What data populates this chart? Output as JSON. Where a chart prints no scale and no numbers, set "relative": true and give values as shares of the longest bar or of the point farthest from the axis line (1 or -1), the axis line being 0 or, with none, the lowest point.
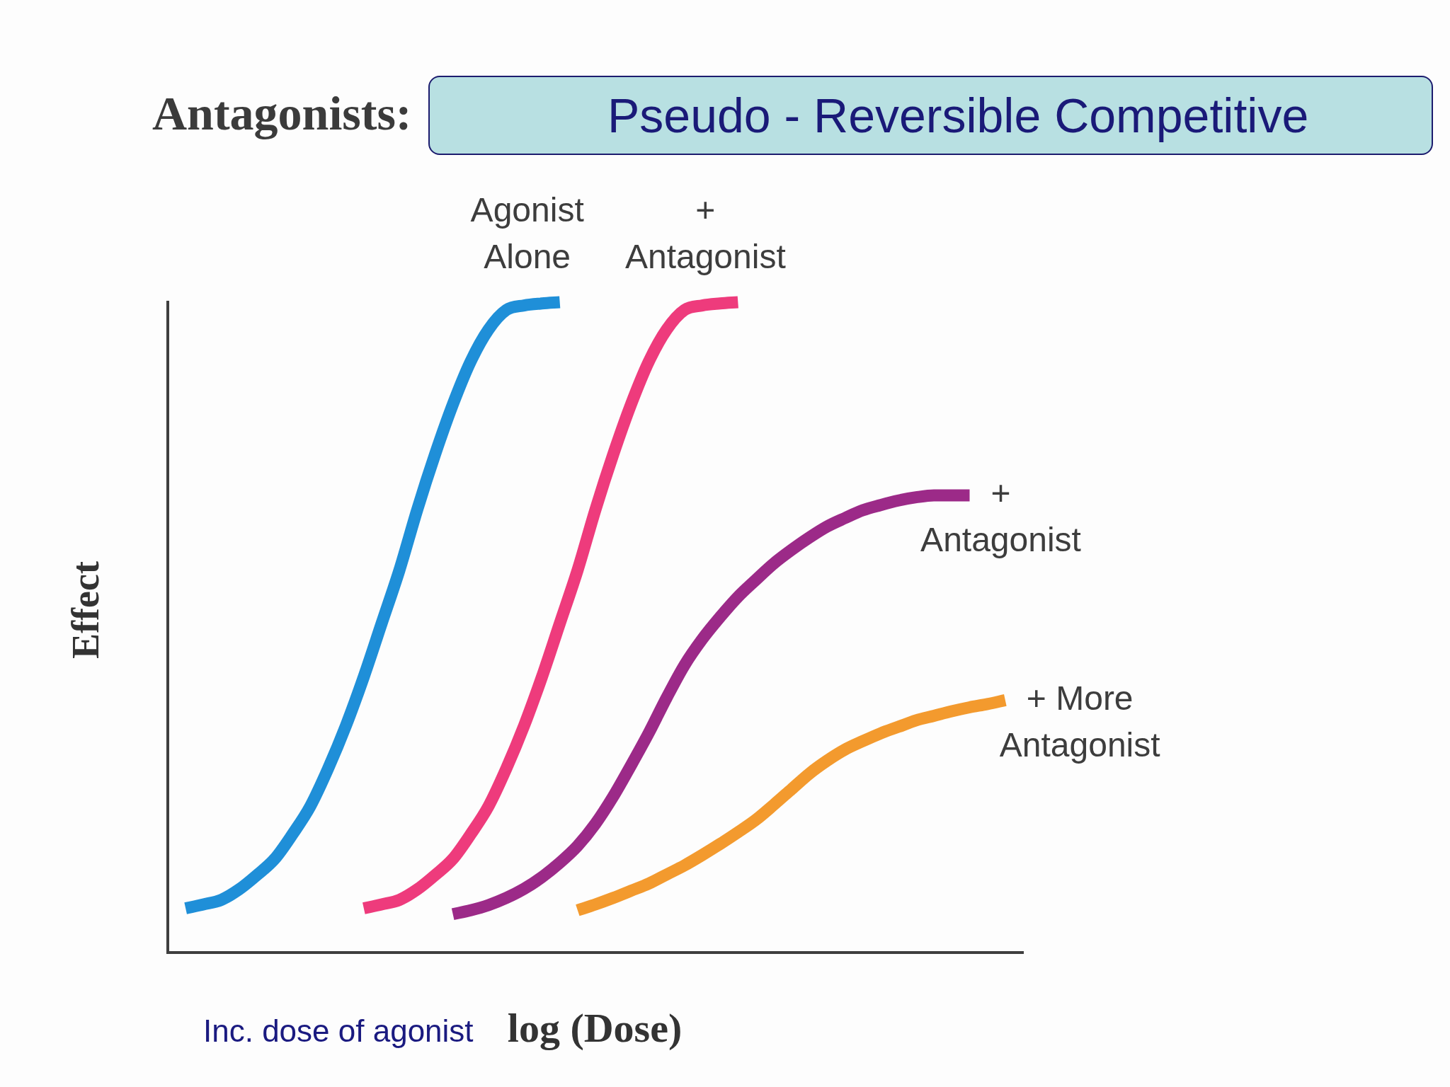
{
  "chart_data": {
    "type": "line",
    "title": "Antagonists:",
    "subtitle": "Pseudo - Reversible Competitive",
    "xlabel": "log (Dose)",
    "ylabel": "Effect",
    "annotations": [
      "Inc. dose of agonist"
    ],
    "relative": true,
    "tick_labels": false,
    "marker": "none",
    "categories": [
      null,
      null,
      null,
      null,
      null,
      null,
      null,
      null,
      null,
      null,
      null,
      null,
      null,
      null,
      null,
      null,
      null,
      null,
      null,
      null,
      null,
      null,
      null,
      null,
      null,
      null,
      null,
      null,
      null,
      null,
      null,
      null,
      null,
      null,
      null,
      null,
      null,
      null,
      null,
      null,
      null,
      null,
      null,
      null,
      null,
      null,
      null,
      null,
      null
    ],
    "series": [
      {
        "name": "Agonist Alone",
        "color": "#1f8fd8",
        "values": [
          null,
          0.068,
          0.074,
          0.081,
          0.097,
          0.119,
          0.144,
          0.182,
          0.225,
          0.283,
          0.349,
          0.424,
          0.506,
          0.588,
          0.681,
          0.766,
          0.843,
          0.909,
          0.958,
          0.988,
          0.995,
          0.998,
          1,
          null,
          null,
          null,
          null,
          null,
          null,
          null,
          null,
          null,
          null,
          null,
          null,
          null,
          null,
          null,
          null,
          null,
          null,
          null,
          null,
          null,
          null,
          null,
          null,
          null,
          null
        ]
      },
      {
        "name": "+ Antagonist",
        "color": "#ee3b7c",
        "values": [
          null,
          null,
          null,
          null,
          null,
          null,
          null,
          null,
          null,
          null,
          null,
          0.068,
          0.074,
          0.081,
          0.097,
          0.119,
          0.144,
          0.182,
          0.225,
          0.283,
          0.349,
          0.424,
          0.506,
          0.588,
          0.681,
          0.766,
          0.843,
          0.909,
          0.958,
          0.988,
          0.995,
          0.998,
          1,
          null,
          null,
          null,
          null,
          null,
          null,
          null,
          null,
          null,
          null,
          null,
          null,
          null,
          null,
          null,
          null
        ]
      },
      {
        "name": "+ Antagonist",
        "color": "#9c2a88",
        "values": [
          null,
          null,
          null,
          null,
          null,
          null,
          null,
          null,
          null,
          null,
          null,
          null,
          null,
          null,
          null,
          null,
          0.059,
          0.065,
          0.073,
          0.084,
          0.098,
          0.116,
          0.138,
          0.164,
          0.198,
          0.24,
          0.288,
          0.338,
          0.392,
          0.442,
          0.482,
          0.516,
          0.547,
          0.573,
          0.598,
          0.619,
          0.638,
          0.655,
          0.668,
          0.68,
          0.688,
          0.695,
          0.7,
          0.703,
          0.703,
          0.703,
          null,
          null,
          null
        ]
      },
      {
        "name": "+ More Antagonist",
        "color": "#f39a2e",
        "values": [
          null,
          null,
          null,
          null,
          null,
          null,
          null,
          null,
          null,
          null,
          null,
          null,
          null,
          null,
          null,
          null,
          null,
          null,
          null,
          null,
          null,
          null,
          null,
          0.065,
          0.074,
          0.084,
          0.095,
          0.106,
          0.12,
          0.134,
          0.15,
          0.167,
          0.185,
          0.204,
          0.227,
          0.251,
          0.275,
          0.295,
          0.312,
          0.325,
          0.337,
          0.347,
          0.357,
          0.364,
          0.371,
          0.377,
          0.382,
          0.388,
          null
        ]
      }
    ]
  }
}
